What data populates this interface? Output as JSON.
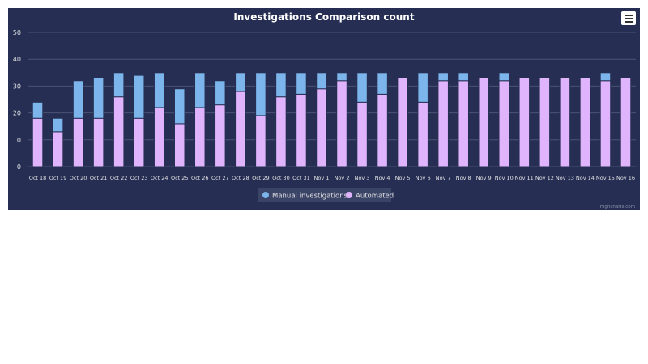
{
  "chart_data": {
    "type": "bar",
    "stacked": true,
    "title": "Investigations Comparison count",
    "xlabel": "",
    "ylabel": "",
    "ylim": [
      0,
      50
    ],
    "yticks": [
      0,
      10,
      20,
      30,
      40,
      50
    ],
    "grid": true,
    "legend_position": "bottom-center",
    "categories": [
      "Oct 18",
      "Oct 19",
      "Oct 20",
      "Oct 21",
      "Oct 22",
      "Oct 23",
      "Oct 24",
      "Oct 25",
      "Oct 26",
      "Oct 27",
      "Oct 28",
      "Oct 29",
      "Oct 30",
      "Oct 31",
      "Nov 1",
      "Nov 2",
      "Nov 3",
      "Nov 4",
      "Nov 5",
      "Nov 6",
      "Nov 7",
      "Nov 8",
      "Nov 9",
      "Nov 10",
      "Nov 11",
      "Nov 12",
      "Nov 13",
      "Nov 14",
      "Nov 15",
      "Nov 16"
    ],
    "series": [
      {
        "name": "Manual investigations",
        "color": "#7cb5ec",
        "values": [
          6,
          5,
          14,
          15,
          9,
          16,
          13,
          13,
          13,
          9,
          7,
          16,
          9,
          8,
          6,
          3,
          11,
          8,
          0,
          11,
          3,
          3,
          0,
          3,
          0,
          0,
          0,
          0,
          3,
          0
        ]
      },
      {
        "name": "Automated",
        "color": "#e0b4fc",
        "values": [
          18,
          13,
          18,
          18,
          26,
          18,
          22,
          16,
          22,
          23,
          28,
          19,
          26,
          27,
          29,
          32,
          24,
          27,
          33,
          24,
          32,
          32,
          33,
          32,
          33,
          33,
          33,
          33,
          32,
          33
        ]
      }
    ],
    "credits": "Highcharts.com"
  },
  "colors": {
    "background": "#262f53",
    "grid": "#4a5375",
    "text": "#e0e0e3"
  },
  "menu_icon": "hamburger-menu-icon"
}
